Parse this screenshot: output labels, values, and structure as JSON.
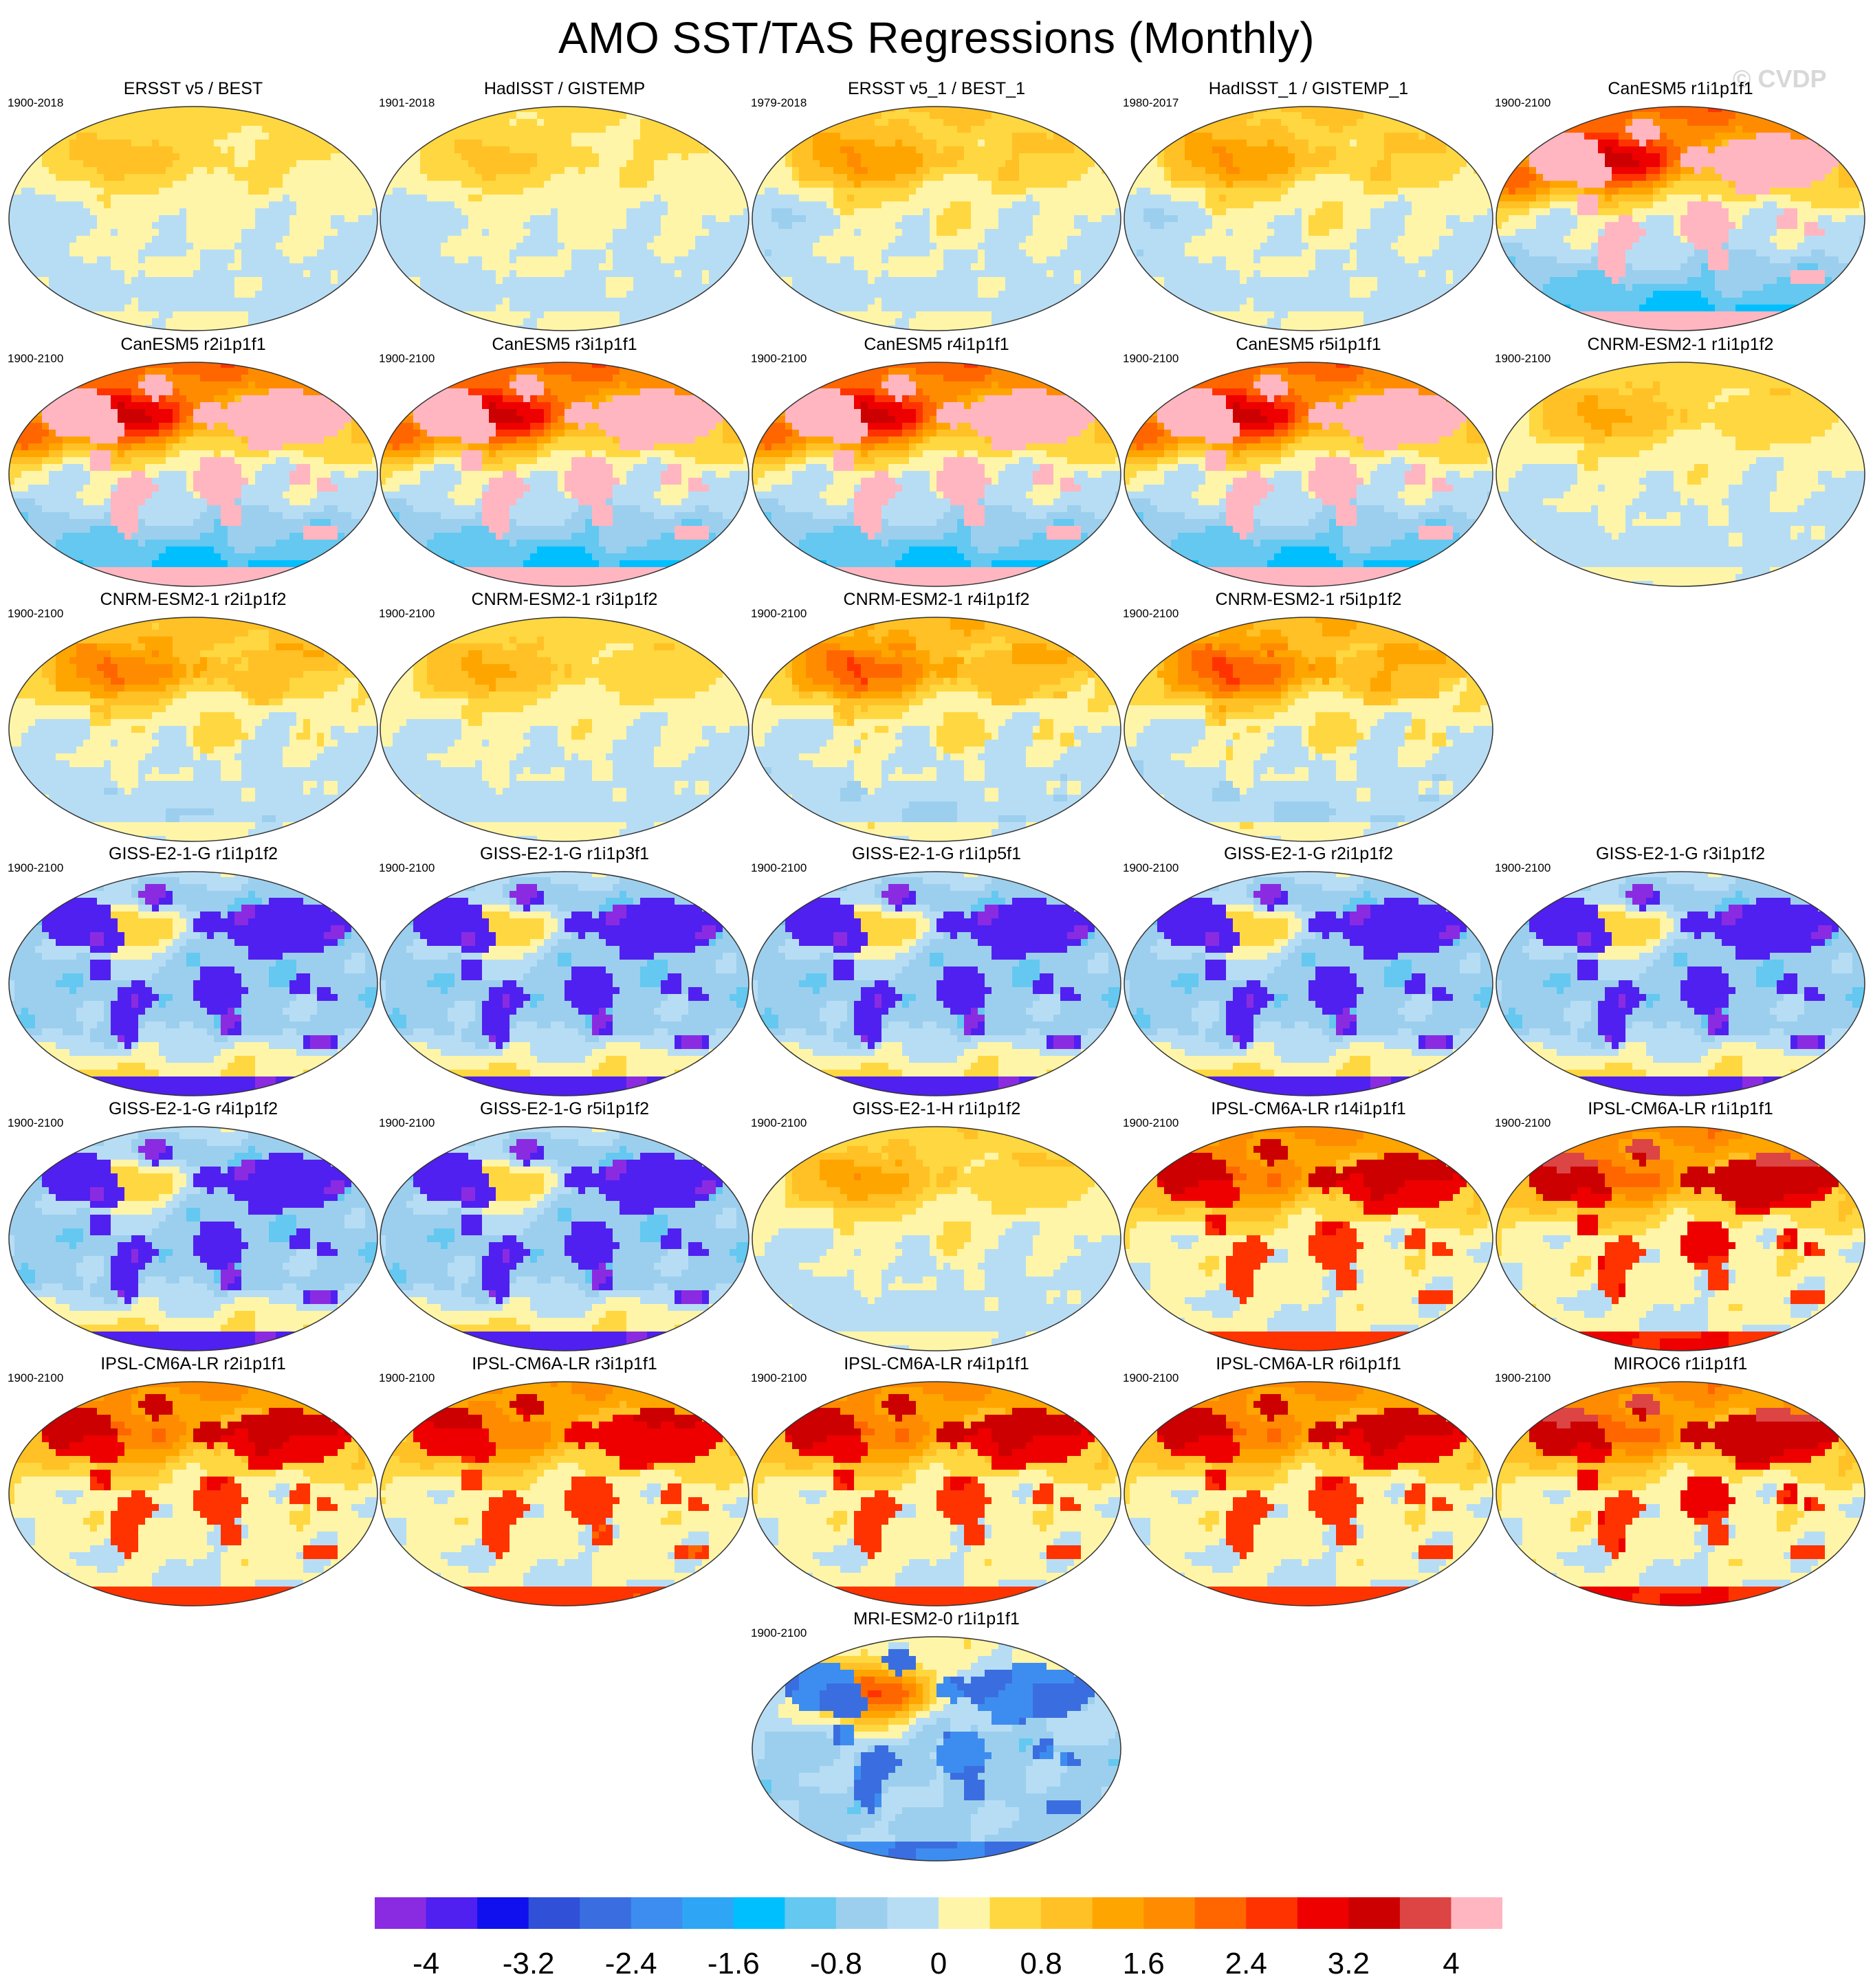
{
  "title": "AMO SST/TAS Regressions (Monthly)",
  "watermark": "© CVDP",
  "chart_data": {
    "type": "heatmap",
    "title": "AMO SST/TAS Regressions (Monthly)",
    "projection": "global-ellipse",
    "colorbar": {
      "levels": [
        -4.4,
        -4,
        -3.6,
        -3.2,
        -2.8,
        -2.4,
        -2,
        -1.6,
        -1.2,
        -0.8,
        -0.4,
        0,
        0.4,
        0.8,
        1.2,
        1.6,
        2,
        2.4,
        2.8,
        3.2,
        3.6,
        4,
        4.4
      ],
      "colors": [
        "#8a2be2",
        "#5020f0",
        "#1010ee",
        "#3050d8",
        "#3a6ee0",
        "#3d8df0",
        "#2ea6f5",
        "#00bfff",
        "#64c8f0",
        "#9ccfee",
        "#b7ddf5",
        "#fff5a8",
        "#ffd740",
        "#ffc125",
        "#ffa500",
        "#ff8c00",
        "#ff6600",
        "#ff3300",
        "#ee0000",
        "#cc0000",
        "#dd4444",
        "#ffb6c1"
      ],
      "tick_labels": [
        "-4",
        "-3.2",
        "-2.4",
        "-1.6",
        "-0.8",
        "0",
        "0.8",
        "1.6",
        "2.4",
        "3.2",
        "4"
      ],
      "tick_values": [
        -4,
        -3.2,
        -2.4,
        -1.6,
        -0.8,
        0,
        0.8,
        1.6,
        2.4,
        3.2,
        4
      ]
    },
    "panels": [
      {
        "title": "ERSST v5 / BEST",
        "years": "1900-2018",
        "pattern": "obs",
        "amp": 0.45
      },
      {
        "title": "HadISST / GISTEMP",
        "years": "1901-2018",
        "pattern": "obs",
        "amp": 0.4
      },
      {
        "title": "ERSST v5_1 / BEST_1",
        "years": "1979-2018",
        "pattern": "obs",
        "amp": 0.7
      },
      {
        "title": "HadISST_1 / GISTEMP_1",
        "years": "1980-2017",
        "pattern": "obs",
        "amp": 0.7
      },
      {
        "title": "CanESM5 r1i1p1f1",
        "years": "1900-2100",
        "pattern": "canesm",
        "amp": 1
      },
      {
        "title": "CanESM5 r2i1p1f1",
        "years": "1900-2100",
        "pattern": "canesm",
        "amp": 1
      },
      {
        "title": "CanESM5 r3i1p1f1",
        "years": "1900-2100",
        "pattern": "canesm",
        "amp": 1
      },
      {
        "title": "CanESM5 r4i1p1f1",
        "years": "1900-2100",
        "pattern": "canesm",
        "amp": 1
      },
      {
        "title": "CanESM5 r5i1p1f1",
        "years": "1900-2100",
        "pattern": "canesm",
        "amp": 1
      },
      {
        "title": "CNRM-ESM2-1 r1i1p1f2",
        "years": "1900-2100",
        "pattern": "cnrm",
        "amp": 0.45
      },
      {
        "title": "CNRM-ESM2-1 r2i1p1f2",
        "years": "1900-2100",
        "pattern": "cnrm",
        "amp": 0.7
      },
      {
        "title": "CNRM-ESM2-1 r3i1p1f2",
        "years": "1900-2100",
        "pattern": "cnrm",
        "amp": 0.45
      },
      {
        "title": "CNRM-ESM2-1 r4i1p1f2",
        "years": "1900-2100",
        "pattern": "cnrm",
        "amp": 0.8
      },
      {
        "title": "CNRM-ESM2-1 r5i1p1f2",
        "years": "1900-2100",
        "pattern": "cnrm",
        "amp": 0.85
      },
      {
        "title": "GISS-E2-1-G r1i1p1f2",
        "years": "1900-2100",
        "pattern": "giss",
        "amp": 1
      },
      {
        "title": "GISS-E2-1-G r1i1p3f1",
        "years": "1900-2100",
        "pattern": "giss",
        "amp": 1
      },
      {
        "title": "GISS-E2-1-G r1i1p5f1",
        "years": "1900-2100",
        "pattern": "giss",
        "amp": 1
      },
      {
        "title": "GISS-E2-1-G r2i1p1f2",
        "years": "1900-2100",
        "pattern": "giss",
        "amp": 0.9
      },
      {
        "title": "GISS-E2-1-G r3i1p1f2",
        "years": "1900-2100",
        "pattern": "giss",
        "amp": 0.85
      },
      {
        "title": "GISS-E2-1-G r4i1p1f2",
        "years": "1900-2100",
        "pattern": "giss",
        "amp": 1
      },
      {
        "title": "GISS-E2-1-G r5i1p1f2",
        "years": "1900-2100",
        "pattern": "giss",
        "amp": 1
      },
      {
        "title": "GISS-E2-1-H r1i1p1f2",
        "years": "1900-2100",
        "pattern": "cnrm",
        "amp": 0.5
      },
      {
        "title": "IPSL-CM6A-LR r14i1p1f1",
        "years": "1900-2100",
        "pattern": "ipsl",
        "amp": 0.95
      },
      {
        "title": "IPSL-CM6A-LR r1i1p1f1",
        "years": "1900-2100",
        "pattern": "ipsl",
        "amp": 1
      },
      {
        "title": "IPSL-CM6A-LR r2i1p1f1",
        "years": "1900-2100",
        "pattern": "ipsl",
        "amp": 0.95
      },
      {
        "title": "IPSL-CM6A-LR r3i1p1f1",
        "years": "1900-2100",
        "pattern": "ipsl",
        "amp": 0.9
      },
      {
        "title": "IPSL-CM6A-LR r4i1p1f1",
        "years": "1900-2100",
        "pattern": "ipsl",
        "amp": 0.95
      },
      {
        "title": "IPSL-CM6A-LR r6i1p1f1",
        "years": "1900-2100",
        "pattern": "ipsl",
        "amp": 0.95
      },
      {
        "title": "MIROC6 r1i1p1f1",
        "years": "1900-2100",
        "pattern": "ipsl",
        "amp": 1
      },
      {
        "title": "MRI-ESM2-0 r1i1p1f1",
        "years": "1900-2100",
        "pattern": "mri",
        "amp": 1
      }
    ]
  }
}
